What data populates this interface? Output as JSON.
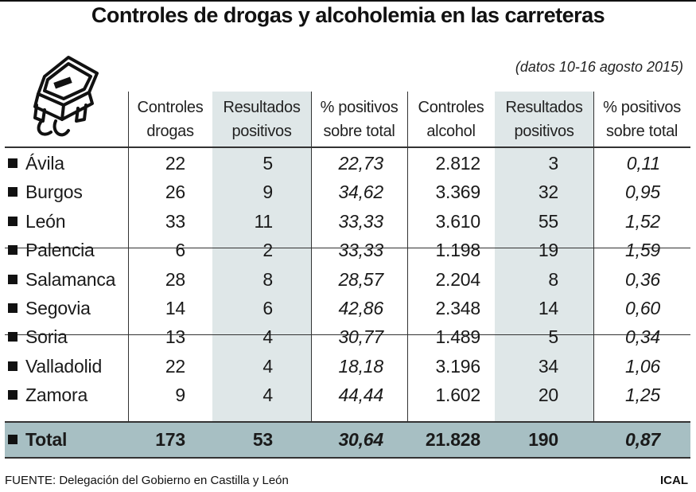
{
  "title": "Controles de drogas y alcoholemia en las carreteras",
  "dateline": "(datos 10-16 agosto 2015)",
  "footer": {
    "source": "FUENTE: Delegación del Gobierno en Castilla y León",
    "brand": "ICAL"
  },
  "icon": "car-icon",
  "colors": {
    "shade": "#dfe7e8",
    "total_bar": "#a7bfc3"
  },
  "chart_data": {
    "type": "table",
    "title": "Controles de drogas y alcoholemia en las carreteras",
    "subtitle": "(datos 10-16 agosto 2015)",
    "columns": [
      {
        "line1": "Controles",
        "line2": "drogas"
      },
      {
        "line1": "Resultados",
        "line2": "positivos"
      },
      {
        "line1": "% positivos",
        "line2": "sobre total"
      },
      {
        "line1": "Controles",
        "line2": "alcohol"
      },
      {
        "line1": "Resultados",
        "line2": "positivos"
      },
      {
        "line1": "% positivos",
        "line2": "sobre total"
      }
    ],
    "rows": [
      {
        "name": "Ávila",
        "values": [
          "22",
          "5",
          "22,73",
          "2.812",
          "3",
          "0,11"
        ]
      },
      {
        "name": "Burgos",
        "values": [
          "26",
          "9",
          "34,62",
          "3.369",
          "32",
          "0,95"
        ]
      },
      {
        "name": "León",
        "values": [
          "33",
          "11",
          "33,33",
          "3.610",
          "55",
          "1,52"
        ]
      },
      {
        "name": "Palencia",
        "values": [
          "6",
          "2",
          "33,33",
          "1.198",
          "19",
          "1,59"
        ]
      },
      {
        "name": "Salamanca",
        "values": [
          "28",
          "8",
          "28,57",
          "2.204",
          "8",
          "0,36"
        ]
      },
      {
        "name": "Segovia",
        "values": [
          "14",
          "6",
          "42,86",
          "2.348",
          "14",
          "0,60"
        ]
      },
      {
        "name": "Soria",
        "values": [
          "13",
          "4",
          "30,77",
          "1.489",
          "5",
          "0,34"
        ]
      },
      {
        "name": "Valladolid",
        "values": [
          "22",
          "4",
          "18,18",
          "3.196",
          "34",
          "1,06"
        ]
      },
      {
        "name": "Zamora",
        "values": [
          "9",
          "4",
          "44,44",
          "1.602",
          "20",
          "1,25"
        ]
      }
    ],
    "total": {
      "name": "Total",
      "values": [
        "173",
        "53",
        "30,64",
        "21.828",
        "190",
        "0,87"
      ]
    }
  }
}
